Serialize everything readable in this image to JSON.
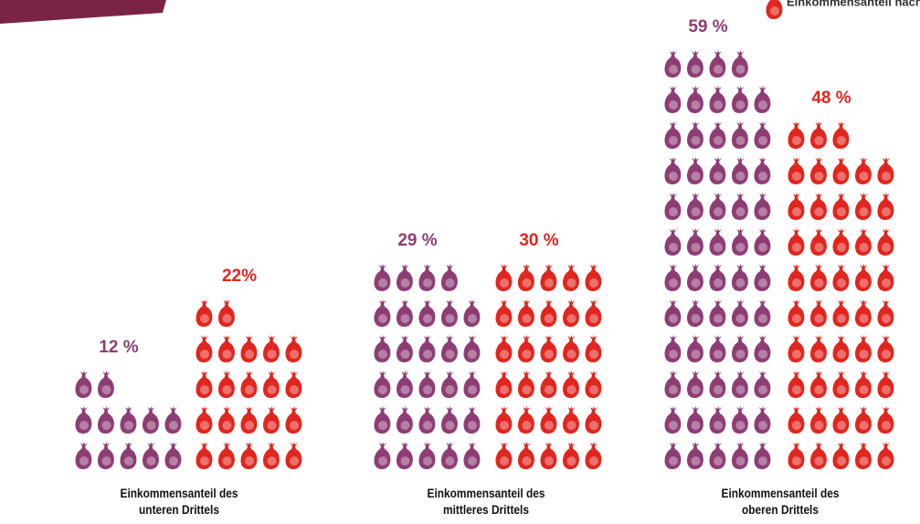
{
  "chart_data": {
    "type": "pictogram",
    "categories": [
      "Einkommensanteil des unteren Drittels",
      "Einkommensanteil des mittleres Drittels",
      "Einkommensanteil des oberen Drittels"
    ],
    "series": [
      {
        "color": "#8e3d74",
        "values": [
          12,
          29,
          59
        ],
        "value_labels": [
          "12 %",
          "29 %",
          "59 %"
        ]
      },
      {
        "name": "Einkommensanteil nach",
        "color": "#e0261f",
        "values": [
          22,
          30,
          48
        ],
        "value_labels": [
          "22%",
          "30 %",
          "48 %"
        ]
      }
    ]
  }
}
